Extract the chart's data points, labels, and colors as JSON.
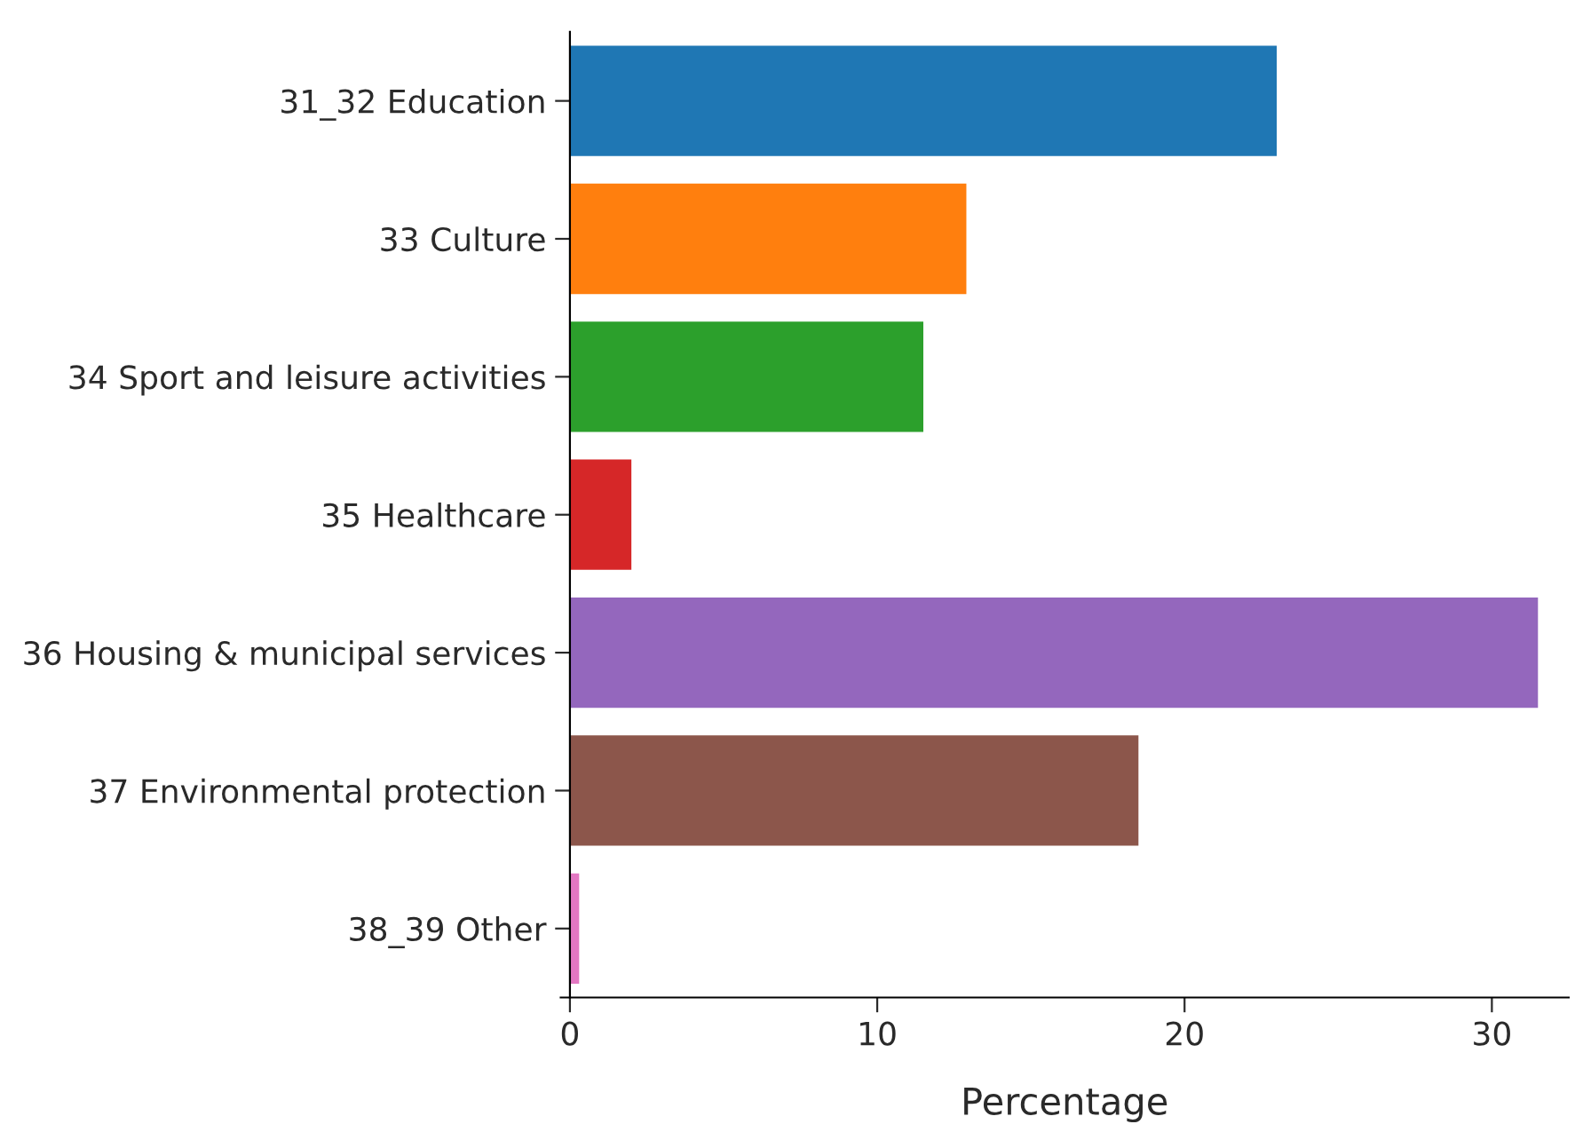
{
  "chart_data": {
    "type": "bar",
    "orientation": "horizontal",
    "xlabel": "Percentage",
    "categories": [
      "31_32 Education",
      "33 Culture",
      "34 Sport and leisure activities",
      "35 Healthcare",
      "36 Housing & municipal services",
      "37 Environmental protection",
      "38_39 Other"
    ],
    "values": [
      23.0,
      12.9,
      11.5,
      2.0,
      31.5,
      18.5,
      0.3
    ],
    "colors": [
      "#1f77b4",
      "#ff7f0e",
      "#2ca02c",
      "#d62728",
      "#9467bd",
      "#8c564b",
      "#e377c2"
    ],
    "xlim": [
      -0.3,
      32.5
    ],
    "xticks": [
      0,
      10,
      20,
      30
    ],
    "grid": false,
    "legend": false
  }
}
